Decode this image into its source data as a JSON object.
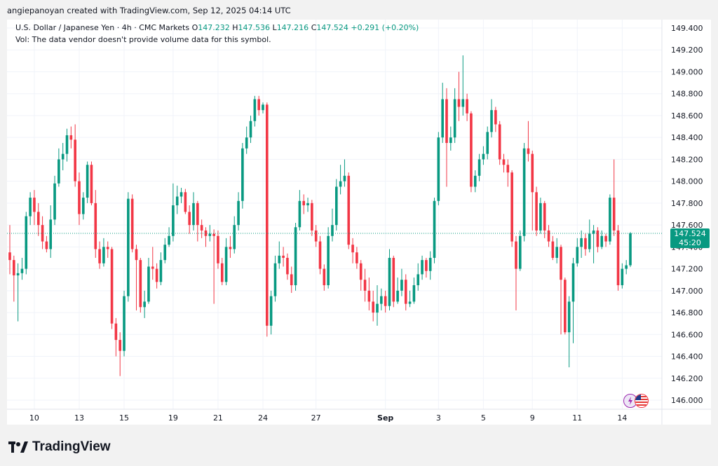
{
  "header": {
    "created_by": "angiepanoyan created with TradingView.com, Sep 12, 2025 04:14 UTC"
  },
  "legend": {
    "symbol": "U.S. Dollar / Japanese Yen · 4h · CMC Markets",
    "open_label": "O",
    "open": "147.232",
    "high_label": "H",
    "high": "147.536",
    "low_label": "L",
    "low": "147.216",
    "close_label": "C",
    "close": "147.524",
    "change": "+0.291 (+0.20%)",
    "vol_note": "Vol: The data vendor doesn't provide volume data for this symbol."
  },
  "price_badge": {
    "price": "147.524",
    "countdown": "45:20"
  },
  "footer": {
    "brand": "TradingView"
  },
  "colors": {
    "up": "#089981",
    "down": "#f23645",
    "grid": "#f0f3fa",
    "last_price_line": "#089981"
  },
  "icons": [
    "lightning-event-icon",
    "us-flag-event-icon"
  ],
  "chart_data": {
    "type": "candlestick",
    "ylim": [
      145.85,
      149.52
    ],
    "y_ticks": [
      "146.000",
      "146.200",
      "146.400",
      "146.600",
      "146.800",
      "147.000",
      "147.200",
      "147.400",
      "147.600",
      "147.800",
      "148.000",
      "148.200",
      "148.400",
      "148.600",
      "148.800",
      "149.000",
      "149.200",
      "149.400"
    ],
    "x_labels": [
      {
        "label": "10",
        "i": 6
      },
      {
        "label": "13",
        "i": 17
      },
      {
        "label": "15",
        "i": 28
      },
      {
        "label": "19",
        "i": 40
      },
      {
        "label": "21",
        "i": 51
      },
      {
        "label": "24",
        "i": 62
      },
      {
        "label": "27",
        "i": 75
      },
      {
        "label": "Sep",
        "i": 92,
        "bold": true
      },
      {
        "label": "3",
        "i": 105
      },
      {
        "label": "5",
        "i": 116
      },
      {
        "label": "9",
        "i": 128
      },
      {
        "label": "11",
        "i": 139
      },
      {
        "label": "14",
        "i": 150
      }
    ],
    "last_price": 147.524,
    "candles": [
      [
        147.35,
        147.28,
        147.6,
        147.15
      ],
      [
        147.28,
        147.14,
        147.32,
        146.9
      ],
      [
        147.14,
        147.16,
        147.25,
        146.72
      ],
      [
        147.16,
        147.2,
        147.3,
        147.1
      ],
      [
        147.2,
        147.68,
        147.72,
        147.15
      ],
      [
        147.68,
        147.85,
        147.9,
        147.6
      ],
      [
        147.85,
        147.72,
        147.92,
        147.6
      ],
      [
        147.72,
        147.6,
        147.8,
        147.5
      ],
      [
        147.6,
        147.45,
        147.68,
        147.38
      ],
      [
        147.45,
        147.38,
        147.5,
        147.35
      ],
      [
        147.38,
        147.65,
        147.78,
        147.3
      ],
      [
        147.65,
        147.98,
        148.05,
        147.6
      ],
      [
        147.98,
        148.2,
        148.3,
        147.95
      ],
      [
        148.2,
        148.25,
        148.35,
        148.1
      ],
      [
        148.25,
        148.42,
        148.48,
        148.18
      ],
      [
        148.42,
        148.38,
        148.5,
        148.3
      ],
      [
        148.38,
        148.0,
        148.52,
        147.95
      ],
      [
        148.0,
        147.7,
        148.08,
        147.6
      ],
      [
        147.7,
        147.85,
        147.9,
        147.65
      ],
      [
        147.85,
        148.15,
        148.18,
        147.8
      ],
      [
        148.15,
        147.8,
        148.18,
        147.78
      ],
      [
        147.8,
        147.38,
        147.92,
        147.3
      ],
      [
        147.38,
        147.25,
        147.45,
        147.2
      ],
      [
        147.25,
        147.4,
        147.48,
        147.22
      ],
      [
        147.4,
        147.38,
        147.45,
        147.3
      ],
      [
        147.38,
        146.7,
        147.4,
        146.65
      ],
      [
        146.7,
        146.55,
        146.75,
        146.4
      ],
      [
        146.55,
        146.45,
        146.62,
        146.22
      ],
      [
        146.45,
        146.95,
        147.0,
        146.4
      ],
      [
        146.95,
        147.84,
        147.9,
        146.9
      ],
      [
        147.84,
        147.38,
        147.88,
        147.35
      ],
      [
        147.38,
        147.28,
        147.42,
        146.82
      ],
      [
        147.28,
        146.85,
        147.3,
        146.8
      ],
      [
        146.85,
        146.9,
        147.0,
        146.75
      ],
      [
        146.9,
        147.22,
        147.3,
        146.88
      ],
      [
        147.22,
        147.2,
        147.4,
        147.1
      ],
      [
        147.2,
        147.08,
        147.25,
        147.02
      ],
      [
        147.08,
        147.28,
        147.35,
        147.05
      ],
      [
        147.28,
        147.42,
        147.48,
        147.25
      ],
      [
        147.42,
        147.5,
        147.58,
        147.4
      ],
      [
        147.5,
        147.78,
        147.98,
        147.45
      ],
      [
        147.78,
        147.86,
        147.96,
        147.7
      ],
      [
        147.86,
        147.9,
        147.94,
        147.8
      ],
      [
        147.9,
        147.72,
        147.93,
        147.7
      ],
      [
        147.72,
        147.6,
        147.78,
        147.52
      ],
      [
        147.6,
        147.8,
        147.9,
        147.55
      ],
      [
        147.8,
        147.6,
        147.82,
        147.45
      ],
      [
        147.6,
        147.55,
        147.65,
        147.48
      ],
      [
        147.55,
        147.5,
        147.58,
        147.4
      ],
      [
        147.5,
        147.52,
        147.6,
        147.45
      ],
      [
        147.52,
        147.5,
        147.56,
        146.88
      ],
      [
        147.5,
        147.25,
        147.55,
        147.2
      ],
      [
        147.25,
        147.08,
        147.3,
        147.05
      ],
      [
        147.08,
        147.4,
        147.48,
        147.05
      ],
      [
        147.4,
        147.38,
        147.5,
        147.3
      ],
      [
        147.38,
        147.6,
        147.68,
        147.34
      ],
      [
        147.6,
        147.82,
        147.9,
        147.55
      ],
      [
        147.82,
        148.3,
        148.35,
        147.75
      ],
      [
        148.3,
        148.4,
        148.5,
        148.25
      ],
      [
        148.4,
        148.55,
        148.6,
        148.35
      ],
      [
        148.55,
        148.75,
        148.78,
        148.5
      ],
      [
        148.75,
        148.65,
        148.78,
        148.6
      ],
      [
        148.65,
        148.7,
        148.72,
        148.62
      ],
      [
        148.7,
        146.68,
        148.72,
        146.58
      ],
      [
        146.68,
        146.95,
        147.0,
        146.6
      ],
      [
        146.95,
        147.25,
        147.32,
        146.9
      ],
      [
        147.25,
        147.32,
        147.45,
        147.2
      ],
      [
        147.32,
        147.3,
        147.4,
        147.22
      ],
      [
        147.3,
        147.15,
        147.34,
        147.1
      ],
      [
        147.15,
        147.05,
        147.22,
        146.98
      ],
      [
        147.05,
        147.58,
        147.62,
        147.0
      ],
      [
        147.58,
        147.82,
        147.92,
        147.55
      ],
      [
        147.82,
        147.78,
        147.88,
        147.7
      ],
      [
        147.78,
        147.8,
        147.85,
        147.72
      ],
      [
        147.8,
        147.55,
        147.83,
        147.5
      ],
      [
        147.55,
        147.45,
        147.6,
        147.4
      ],
      [
        147.45,
        147.2,
        147.5,
        147.15
      ],
      [
        147.2,
        147.05,
        147.24,
        147.0
      ],
      [
        147.05,
        147.5,
        147.58,
        147.02
      ],
      [
        147.5,
        147.6,
        147.75,
        147.45
      ],
      [
        147.6,
        147.95,
        148.02,
        147.55
      ],
      [
        147.95,
        148.0,
        148.15,
        147.88
      ],
      [
        148.0,
        148.05,
        148.2,
        147.95
      ],
      [
        148.05,
        147.42,
        148.08,
        147.38
      ],
      [
        147.42,
        147.35,
        147.48,
        147.25
      ],
      [
        147.35,
        147.25,
        147.4,
        147.2
      ],
      [
        147.25,
        147.1,
        147.28,
        147.0
      ],
      [
        147.1,
        147.0,
        147.2,
        146.9
      ],
      [
        147.0,
        146.9,
        147.12,
        146.82
      ],
      [
        146.9,
        146.8,
        147.0,
        146.72
      ],
      [
        146.8,
        146.88,
        147.05,
        146.68
      ],
      [
        146.88,
        146.95,
        147.02,
        146.82
      ],
      [
        146.95,
        146.86,
        147.0,
        146.8
      ],
      [
        146.86,
        147.3,
        147.38,
        146.82
      ],
      [
        147.3,
        146.9,
        147.32,
        146.85
      ],
      [
        146.9,
        147.0,
        147.12,
        146.88
      ],
      [
        147.0,
        147.1,
        147.2,
        146.95
      ],
      [
        147.1,
        146.88,
        147.15,
        146.82
      ],
      [
        146.88,
        146.9,
        147.0,
        146.85
      ],
      [
        146.9,
        147.05,
        147.12,
        146.88
      ],
      [
        147.05,
        147.15,
        147.25,
        147.0
      ],
      [
        147.15,
        147.28,
        147.32,
        147.1
      ],
      [
        147.28,
        147.18,
        147.3,
        147.12
      ],
      [
        147.18,
        147.3,
        147.36,
        147.1
      ],
      [
        147.3,
        147.82,
        147.85,
        147.25
      ],
      [
        147.82,
        148.4,
        148.45,
        147.78
      ],
      [
        148.4,
        148.75,
        148.9,
        148.35
      ],
      [
        148.75,
        148.35,
        148.85,
        147.95
      ],
      [
        148.35,
        148.4,
        148.5,
        148.28
      ],
      [
        148.4,
        148.75,
        148.85,
        148.35
      ],
      [
        148.75,
        148.68,
        149.0,
        148.55
      ],
      [
        148.68,
        148.75,
        149.15,
        148.6
      ],
      [
        148.75,
        148.62,
        148.8,
        148.55
      ],
      [
        148.62,
        147.95,
        148.64,
        147.9
      ],
      [
        147.95,
        148.05,
        148.1,
        147.9
      ],
      [
        148.05,
        148.2,
        148.25,
        148.0
      ],
      [
        148.2,
        148.25,
        148.32,
        148.15
      ],
      [
        148.25,
        148.45,
        148.5,
        148.2
      ],
      [
        148.45,
        148.65,
        148.75,
        148.4
      ],
      [
        148.65,
        148.52,
        148.68,
        148.45
      ],
      [
        148.52,
        148.2,
        148.55,
        148.15
      ],
      [
        148.2,
        148.15,
        148.25,
        148.08
      ],
      [
        148.15,
        148.08,
        148.2,
        147.95
      ],
      [
        148.08,
        147.45,
        148.1,
        147.4
      ],
      [
        147.45,
        147.2,
        147.5,
        146.82
      ],
      [
        147.2,
        147.5,
        147.55,
        147.18
      ],
      [
        147.5,
        148.3,
        148.35,
        147.45
      ],
      [
        148.3,
        148.25,
        148.55,
        148.18
      ],
      [
        148.25,
        147.9,
        148.28,
        147.55
      ],
      [
        147.9,
        147.55,
        147.95,
        147.5
      ],
      [
        147.55,
        147.8,
        147.85,
        147.52
      ],
      [
        147.8,
        147.55,
        147.82,
        147.48
      ],
      [
        147.55,
        147.45,
        147.6,
        147.4
      ],
      [
        147.45,
        147.3,
        147.5,
        147.28
      ],
      [
        147.3,
        147.4,
        147.48,
        147.25
      ],
      [
        147.4,
        147.1,
        147.42,
        146.6
      ],
      [
        147.1,
        146.62,
        147.12,
        146.6
      ],
      [
        146.62,
        146.9,
        146.95,
        146.3
      ],
      [
        146.9,
        147.25,
        147.3,
        146.52
      ],
      [
        147.25,
        147.4,
        147.48,
        147.22
      ],
      [
        147.4,
        147.48,
        147.55,
        147.3
      ],
      [
        147.48,
        147.38,
        147.52,
        147.32
      ],
      [
        147.38,
        147.52,
        147.65,
        147.35
      ],
      [
        147.52,
        147.55,
        147.6,
        147.25
      ],
      [
        147.55,
        147.4,
        147.58,
        147.35
      ],
      [
        147.4,
        147.5,
        147.55,
        147.38
      ],
      [
        147.5,
        147.45,
        147.52,
        147.4
      ],
      [
        147.45,
        147.85,
        147.88,
        147.42
      ],
      [
        147.85,
        147.55,
        148.2,
        147.5
      ],
      [
        147.55,
        147.05,
        147.6,
        147.0
      ],
      [
        147.05,
        147.2,
        147.25,
        147.02
      ],
      [
        147.2,
        147.232,
        147.28,
        147.15
      ],
      [
        147.232,
        147.524,
        147.536,
        147.216
      ]
    ]
  }
}
